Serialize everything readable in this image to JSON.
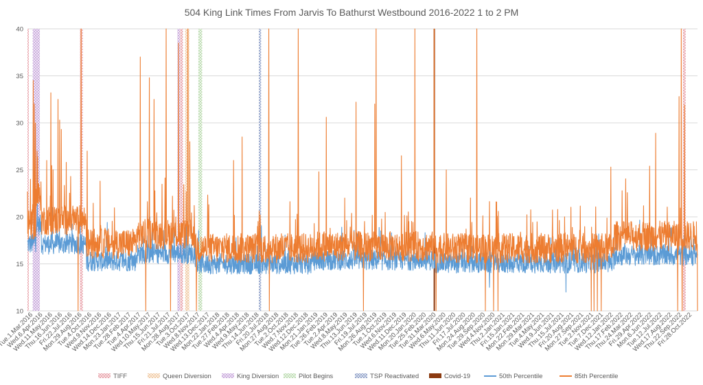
{
  "chart_data": {
    "type": "line",
    "title": "504 King Link Times From Jarvis To Bathurst Westbound 2016-2022 1 to 2 PM",
    "xlabel": "",
    "ylabel": "",
    "ylim": [
      10,
      40
    ],
    "y_ticks": [
      10,
      15,
      20,
      25,
      30,
      35,
      40
    ],
    "grid": "horizontal",
    "legend_position": "bottom",
    "x_start": "2016-03-01",
    "x_end": "2022-10-31",
    "x_tick_labels": [
      "Tue.1.Mar.2016",
      "Wed.6.Apr.2016",
      "Wed.11.May.2016",
      "Thu.16.Jun.2016",
      "Fri.22.Jul.2016",
      "Mon.29.Aug.2016",
      "Tue.4.Oct.2016",
      "Wed.9.Nov.2016",
      "Wed.14.Dec.2016",
      "Mon.23.Jan.2017",
      "Tue.28.Feb.2017",
      "Tue.4.Apr.2017",
      "Wed.10.May.2017",
      "Thu.15.Jun.2017",
      "Fri.21.Jul.2017",
      "Mon.28.Aug.2017",
      "Tue.3.Oct.2017",
      "Wed.8.Nov.2017",
      "Wed.13.Dec.2017",
      "Mon.22.Jan.2018",
      "Tue.27.Feb.2018",
      "Wed.4.Apr.2018",
      "Wed.9.May.2018",
      "Thu.14.Jun.2018",
      "Fri.20.Jul.2018",
      "Mon.27.Aug.2018",
      "Tue.2.Oct.2018",
      "Wed.7.Nov.2018",
      "Wed.12.Dec.2018",
      "Mon.21.Jan.2019",
      "Tue.26.Feb.2019",
      "Tue.2.Apr.2019",
      "Wed.8.May.2019",
      "Thu.13.Jun.2019",
      "Fri.19.Jul.2019",
      "Mon.26.Aug.2019",
      "Tue.1.Oct.2019",
      "Wed.6.Nov.2019",
      "Wed.11.Dec.2019",
      "Mon.20.Jan.2020",
      "Tue.25.Feb.2020",
      "Tue.31.Mar.2020",
      "Wed.6.May.2020",
      "Thu.11.Jun.2020",
      "Fri.17.Jul.2020",
      "Mon.24.Aug.2020",
      "Tue.29.Sep.2020",
      "Wed.4.Nov.2020",
      "Thu.2.Jan.2021",
      "Fri.15.Jan.2021",
      "Mon.22.Feb.2021",
      "Mon.29.Mar.2021",
      "Tue.4.May.2021",
      "Wed.9.Jun.2021",
      "Thu.15.Jul.2021",
      "Fri.20.Aug.2021",
      "Mon.27.Sep.2021",
      "Tue.2.Nov.2021",
      "Tue.7.Dec.2021",
      "Wed.12.Jan.2022",
      "Thu.17.Feb.2022",
      "Thu.24.Mar.2022",
      "Fri.29.Apr.2022",
      "Mon.6.Jun.2022",
      "Tue.12.Jul.2022",
      "Wed.17.Aug.2022",
      "Thu.22.Sep.2022",
      "Fri.28.Oct.2022"
    ],
    "events": [
      {
        "name": "TIFF",
        "color": "#e8a0a8",
        "pattern": "crosshatch",
        "ranges": [
          [
            "2016-03-01",
            "2016-03-05"
          ],
          [
            "2016-09-08",
            "2016-09-18"
          ],
          [
            "2017-09-07",
            "2017-09-17"
          ],
          [
            "2022-09-08",
            "2022-09-18"
          ]
        ]
      },
      {
        "name": "Queen Diversion",
        "color": "#f0c8a0",
        "pattern": "crosshatch",
        "ranges": [
          [
            "2017-09-25",
            "2017-10-10"
          ]
        ]
      },
      {
        "name": "King Diversion",
        "color": "#c8a8dc",
        "pattern": "crosshatch",
        "ranges": [
          [
            "2016-03-20",
            "2016-04-15"
          ],
          [
            "2017-08-28",
            "2017-09-06"
          ]
        ]
      },
      {
        "name": "Pilot Begins",
        "color": "#bcdcb0",
        "pattern": "crosshatch",
        "ranges": [
          [
            "2017-11-12",
            "2017-11-26"
          ]
        ]
      },
      {
        "name": "TSP Reactivated",
        "color": "#8ea0c8",
        "pattern": "crosshatch",
        "ranges": [
          [
            "2018-06-20",
            "2018-06-28"
          ]
        ]
      },
      {
        "name": "Covid-19",
        "color": "#8b3a10",
        "pattern": "solid",
        "ranges": [
          [
            "2020-03-16",
            "2020-03-21"
          ]
        ]
      }
    ],
    "series": [
      {
        "name": "50th Percentile",
        "color": "#5b9bd5",
        "periods": [
          {
            "from": "2016-03-01",
            "to": "2016-03-31",
            "level": 17.0
          },
          {
            "from": "2016-04-01",
            "to": "2016-04-20",
            "level": 19.0
          },
          {
            "from": "2016-04-21",
            "to": "2016-09-30",
            "level": 17.0
          },
          {
            "from": "2016-10-01",
            "to": "2017-03-31",
            "level": 15.2
          },
          {
            "from": "2017-04-01",
            "to": "2017-10-31",
            "level": 16.0
          },
          {
            "from": "2017-11-01",
            "to": "2018-12-31",
            "level": 14.9
          },
          {
            "from": "2019-01-01",
            "to": "2020-03-15",
            "level": 15.3
          },
          {
            "from": "2020-03-16",
            "to": "2021-12-31",
            "level": 15.0
          },
          {
            "from": "2022-01-01",
            "to": "2022-10-31",
            "level": 15.8
          }
        ],
        "spikes": [
          {
            "date": "2016-03-24",
            "value": 25.0
          },
          {
            "date": "2016-03-28",
            "value": 24.0
          },
          {
            "date": "2016-05-30",
            "value": 21.0
          },
          {
            "date": "2017-05-20",
            "value": 20.0
          },
          {
            "date": "2017-09-29",
            "value": 21.5
          },
          {
            "date": "2018-10-05",
            "value": 17.0
          },
          {
            "date": "2020-10-05",
            "value": 12.5
          },
          {
            "date": "2021-07-10",
            "value": 12.0
          }
        ]
      },
      {
        "name": "85th Percentile",
        "color": "#ed7d31",
        "periods": [
          {
            "from": "2016-03-01",
            "to": "2016-03-31",
            "level": 19.0
          },
          {
            "from": "2016-04-01",
            "to": "2016-04-20",
            "level": 22.0
          },
          {
            "from": "2016-04-21",
            "to": "2016-09-30",
            "level": 19.5
          },
          {
            "from": "2016-10-01",
            "to": "2017-03-31",
            "level": 17.0
          },
          {
            "from": "2017-04-01",
            "to": "2017-10-31",
            "level": 18.0
          },
          {
            "from": "2017-11-01",
            "to": "2018-12-31",
            "level": 16.5
          },
          {
            "from": "2019-01-01",
            "to": "2020-03-15",
            "level": 16.7
          },
          {
            "from": "2020-03-16",
            "to": "2021-12-31",
            "level": 16.5
          },
          {
            "from": "2022-01-01",
            "to": "2022-10-31",
            "level": 17.8
          }
        ],
        "spikes": [
          {
            "date": "2016-03-01",
            "value": 22.7
          },
          {
            "date": "2016-03-12",
            "value": 24.0
          },
          {
            "date": "2016-03-22",
            "value": 34.5
          },
          {
            "date": "2016-03-26",
            "value": 32.0
          },
          {
            "date": "2016-03-30",
            "value": 30.0
          },
          {
            "date": "2016-04-05",
            "value": 27.0
          },
          {
            "date": "2016-05-10",
            "value": 26.0
          },
          {
            "date": "2016-05-25",
            "value": 33.2
          },
          {
            "date": "2016-06-20",
            "value": 32.5
          },
          {
            "date": "2016-06-26",
            "value": 30.3
          },
          {
            "date": "2016-07-02",
            "value": 29.3
          },
          {
            "date": "2016-07-20",
            "value": 25.8
          },
          {
            "date": "2016-08-05",
            "value": 24.3
          },
          {
            "date": "2016-09-12",
            "value": 40.0
          },
          {
            "date": "2016-10-04",
            "value": 27.0
          },
          {
            "date": "2016-11-20",
            "value": 23.8
          },
          {
            "date": "2017-04-15",
            "value": 37.0
          },
          {
            "date": "2017-05-18",
            "value": 34.8
          },
          {
            "date": "2017-06-04",
            "value": 32.5
          },
          {
            "date": "2017-07-18",
            "value": 40.0
          },
          {
            "date": "2017-09-01",
            "value": 38.5
          },
          {
            "date": "2017-10-05",
            "value": 40.0
          },
          {
            "date": "2017-10-12",
            "value": 28.0
          },
          {
            "date": "2018-03-20",
            "value": 26.0
          },
          {
            "date": "2018-04-20",
            "value": 28.5
          },
          {
            "date": "2018-06-25",
            "value": 20.2
          },
          {
            "date": "2018-07-26",
            "value": 40.0
          },
          {
            "date": "2018-11-10",
            "value": 40.0
          },
          {
            "date": "2019-01-24",
            "value": 24.8
          },
          {
            "date": "2019-02-20",
            "value": 30.6
          },
          {
            "date": "2019-04-28",
            "value": 22.0
          },
          {
            "date": "2019-06-08",
            "value": 32.2
          },
          {
            "date": "2019-08-15",
            "value": 32.0
          },
          {
            "date": "2019-08-20",
            "value": 40.0
          },
          {
            "date": "2019-11-20",
            "value": 26.5
          },
          {
            "date": "2020-01-08",
            "value": 40.0
          },
          {
            "date": "2020-03-18",
            "value": 40.0
          },
          {
            "date": "2020-05-01",
            "value": 25.0
          },
          {
            "date": "2020-08-20",
            "value": 40.0
          },
          {
            "date": "2021-12-20",
            "value": 25.3
          },
          {
            "date": "2022-05-10",
            "value": 25.4
          },
          {
            "date": "2022-06-01",
            "value": 28.9
          },
          {
            "date": "2022-08-25",
            "value": 32.8
          },
          {
            "date": "2022-09-02",
            "value": 40.0
          },
          {
            "date": "2022-09-14",
            "value": 31.9
          }
        ],
        "dips": [
          "2016-09-01",
          "2017-05-05",
          "2017-08-03",
          "2017-11-05",
          "2018-07-28",
          "2019-07-05",
          "2020-03-25",
          "2020-09-20",
          "2020-10-20",
          "2020-11-05",
          "2021-10-10",
          "2021-10-20",
          "2021-11-01",
          "2021-11-15",
          "2022-08-20",
          "2022-09-05",
          "2022-10-31"
        ]
      }
    ]
  }
}
